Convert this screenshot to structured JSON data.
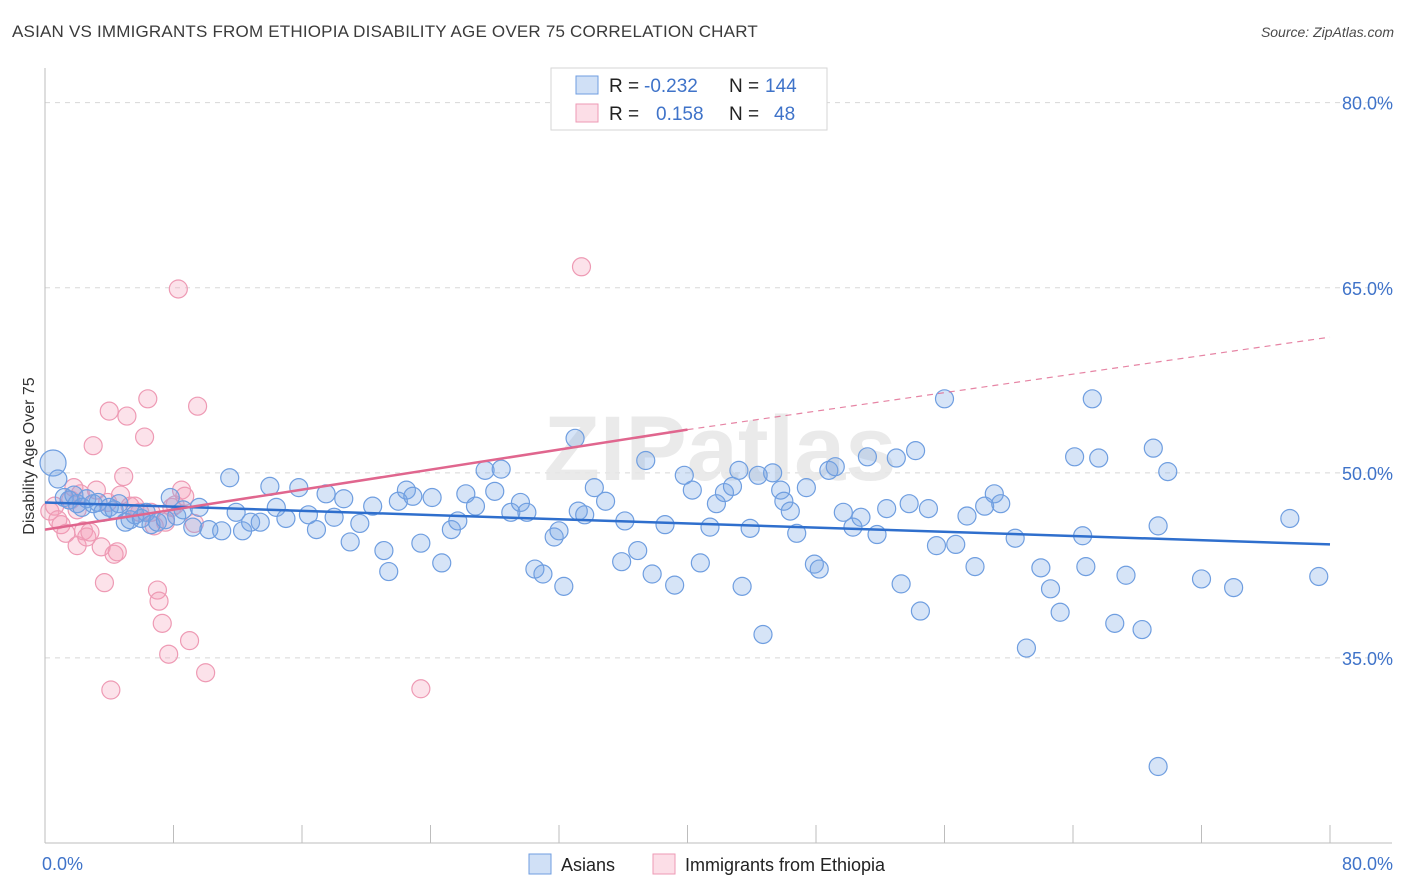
{
  "title": "ASIAN VS IMMIGRANTS FROM ETHIOPIA DISABILITY AGE OVER 75 CORRELATION CHART",
  "source": "Source: ZipAtlas.com",
  "watermark": "ZIPatlas",
  "colors": {
    "asian_fill": "rgba(120,165,230,0.30)",
    "asian_stroke": "#6f9ee0",
    "asian_line": "#2f6fcd",
    "eth_fill": "rgba(245,160,185,0.30)",
    "eth_stroke": "#ee9ab4",
    "eth_line": "#e0668e",
    "axis_text": "#3f73c9",
    "grid": "#d8d8d8"
  },
  "legend": {
    "rows": [
      {
        "r_label": "R =",
        "r_value": "-0.232",
        "n_label": "N =",
        "n_value": "144"
      },
      {
        "r_label": "R =",
        "r_value": "0.158",
        "n_label": "N =",
        "n_value": "48"
      }
    ]
  },
  "chart_data": {
    "type": "scatter",
    "title": "ASIAN VS IMMIGRANTS FROM ETHIOPIA DISABILITY AGE OVER 75 CORRELATION CHART",
    "xlabel": "",
    "ylabel": "Disability Age Over 75",
    "xlim": [
      0,
      80
    ],
    "ylim": [
      20,
      82
    ],
    "x_tick_labels": [
      "0.0%",
      "80.0%"
    ],
    "y_ticks": [
      35,
      50,
      65,
      80
    ],
    "y_tick_labels": [
      "35.0%",
      "50.0%",
      "65.0%",
      "80.0%"
    ],
    "grid": true,
    "series": [
      {
        "name": "Asians",
        "trend": {
          "x0": 0,
          "y0": 47.6,
          "x1": 80,
          "y1": 44.2
        },
        "points": [
          [
            0.5,
            50.8
          ],
          [
            0.8,
            49.5
          ],
          [
            1.2,
            48.0
          ],
          [
            1.5,
            47.8
          ],
          [
            1.8,
            48.2
          ],
          [
            2.0,
            47.5
          ],
          [
            2.3,
            47.2
          ],
          [
            2.6,
            47.9
          ],
          [
            3.0,
            47.5
          ],
          [
            3.3,
            47.6
          ],
          [
            3.6,
            46.8
          ],
          [
            4.0,
            47.2
          ],
          [
            4.3,
            47.0
          ],
          [
            4.6,
            47.5
          ],
          [
            5.0,
            46.0
          ],
          [
            5.3,
            46.2
          ],
          [
            5.6,
            46.6
          ],
          [
            6.0,
            46.3
          ],
          [
            6.3,
            46.8
          ],
          [
            6.6,
            45.8
          ],
          [
            7.0,
            46.0
          ],
          [
            7.5,
            46.2
          ],
          [
            7.8,
            48.0
          ],
          [
            8.2,
            46.5
          ],
          [
            8.6,
            47.0
          ],
          [
            9.2,
            45.6
          ],
          [
            9.6,
            47.2
          ],
          [
            10.2,
            45.4
          ],
          [
            11.0,
            45.3
          ],
          [
            11.5,
            49.6
          ],
          [
            11.9,
            46.8
          ],
          [
            12.3,
            45.3
          ],
          [
            12.8,
            46.0
          ],
          [
            13.4,
            46.0
          ],
          [
            14.0,
            48.9
          ],
          [
            14.4,
            47.2
          ],
          [
            15.0,
            46.3
          ],
          [
            15.8,
            48.8
          ],
          [
            16.4,
            46.6
          ],
          [
            16.9,
            45.4
          ],
          [
            17.5,
            48.3
          ],
          [
            18.0,
            46.4
          ],
          [
            18.6,
            47.9
          ],
          [
            19.0,
            44.4
          ],
          [
            19.6,
            45.9
          ],
          [
            20.4,
            47.3
          ],
          [
            21.1,
            43.7
          ],
          [
            21.4,
            42.0
          ],
          [
            22.0,
            47.7
          ],
          [
            22.5,
            48.6
          ],
          [
            22.9,
            48.1
          ],
          [
            23.4,
            44.3
          ],
          [
            24.1,
            48.0
          ],
          [
            24.7,
            42.7
          ],
          [
            25.3,
            45.4
          ],
          [
            25.7,
            46.1
          ],
          [
            26.2,
            48.3
          ],
          [
            26.8,
            47.3
          ],
          [
            27.4,
            50.2
          ],
          [
            28.0,
            48.5
          ],
          [
            28.4,
            50.3
          ],
          [
            29.0,
            46.8
          ],
          [
            29.6,
            47.6
          ],
          [
            30.0,
            46.8
          ],
          [
            30.5,
            42.2
          ],
          [
            31.0,
            41.8
          ],
          [
            31.7,
            44.8
          ],
          [
            32.0,
            45.3
          ],
          [
            32.3,
            40.8
          ],
          [
            33.0,
            52.8
          ],
          [
            33.2,
            46.9
          ],
          [
            33.6,
            46.6
          ],
          [
            34.2,
            48.8
          ],
          [
            34.9,
            47.7
          ],
          [
            36.1,
            46.1
          ],
          [
            35.9,
            42.8
          ],
          [
            36.9,
            43.7
          ],
          [
            37.4,
            51.0
          ],
          [
            37.8,
            41.8
          ],
          [
            38.6,
            45.8
          ],
          [
            39.2,
            40.9
          ],
          [
            39.8,
            49.8
          ],
          [
            40.3,
            48.6
          ],
          [
            40.8,
            42.7
          ],
          [
            41.4,
            45.6
          ],
          [
            41.8,
            47.5
          ],
          [
            42.3,
            48.4
          ],
          [
            42.8,
            48.9
          ],
          [
            43.2,
            50.2
          ],
          [
            43.4,
            40.8
          ],
          [
            43.9,
            45.5
          ],
          [
            44.4,
            49.8
          ],
          [
            44.7,
            36.9
          ],
          [
            45.3,
            50.0
          ],
          [
            45.8,
            48.6
          ],
          [
            46.0,
            47.7
          ],
          [
            46.4,
            46.9
          ],
          [
            46.8,
            45.1
          ],
          [
            47.4,
            48.8
          ],
          [
            47.9,
            42.6
          ],
          [
            48.2,
            42.2
          ],
          [
            48.8,
            50.2
          ],
          [
            49.2,
            50.5
          ],
          [
            49.7,
            46.8
          ],
          [
            50.3,
            45.6
          ],
          [
            50.8,
            46.4
          ],
          [
            51.2,
            51.3
          ],
          [
            51.8,
            45.0
          ],
          [
            52.4,
            47.1
          ],
          [
            53.0,
            51.2
          ],
          [
            53.3,
            41.0
          ],
          [
            53.8,
            47.5
          ],
          [
            54.2,
            51.8
          ],
          [
            54.5,
            38.8
          ],
          [
            55.0,
            47.1
          ],
          [
            55.5,
            44.1
          ],
          [
            56.0,
            56.0
          ],
          [
            56.7,
            44.2
          ],
          [
            57.4,
            46.5
          ],
          [
            57.9,
            42.4
          ],
          [
            58.5,
            47.3
          ],
          [
            59.1,
            48.3
          ],
          [
            59.5,
            47.5
          ],
          [
            60.4,
            44.7
          ],
          [
            61.1,
            35.8
          ],
          [
            62.0,
            42.3
          ],
          [
            62.6,
            40.6
          ],
          [
            63.2,
            38.7
          ],
          [
            64.1,
            51.3
          ],
          [
            64.6,
            44.9
          ],
          [
            64.8,
            42.4
          ],
          [
            65.2,
            56.0
          ],
          [
            65.6,
            51.2
          ],
          [
            66.6,
            37.8
          ],
          [
            67.3,
            41.7
          ],
          [
            68.3,
            37.3
          ],
          [
            69.0,
            52.0
          ],
          [
            69.3,
            45.7
          ],
          [
            69.9,
            50.1
          ],
          [
            69.3,
            26.2
          ],
          [
            72.0,
            41.4
          ],
          [
            74.0,
            40.7
          ],
          [
            77.5,
            46.3
          ],
          [
            79.3,
            41.6
          ]
        ]
      },
      {
        "name": "Immigrants from Ethiopia",
        "trend": {
          "x0": 0,
          "y0": 45.4,
          "x1": 40,
          "y1": 53.5,
          "dash_to_x": 80,
          "dash_to_y": 61.0
        },
        "points": [
          [
            0.3,
            46.9
          ],
          [
            0.6,
            47.3
          ],
          [
            0.8,
            46.2
          ],
          [
            1.0,
            45.8
          ],
          [
            1.3,
            45.1
          ],
          [
            1.6,
            47.8
          ],
          [
            1.8,
            48.8
          ],
          [
            2.0,
            44.1
          ],
          [
            2.2,
            48.3
          ],
          [
            2.4,
            45.3
          ],
          [
            2.6,
            44.8
          ],
          [
            2.8,
            45.2
          ],
          [
            3.0,
            52.2
          ],
          [
            3.2,
            48.6
          ],
          [
            3.5,
            44.0
          ],
          [
            3.7,
            41.1
          ],
          [
            3.9,
            47.6
          ],
          [
            4.0,
            55.0
          ],
          [
            4.3,
            43.4
          ],
          [
            4.5,
            43.6
          ],
          [
            4.7,
            48.2
          ],
          [
            4.9,
            49.7
          ],
          [
            5.1,
            54.6
          ],
          [
            5.3,
            47.3
          ],
          [
            5.6,
            47.3
          ],
          [
            5.9,
            46.8
          ],
          [
            6.2,
            52.9
          ],
          [
            6.4,
            56.0
          ],
          [
            6.6,
            46.8
          ],
          [
            6.8,
            45.7
          ],
          [
            7.0,
            40.5
          ],
          [
            7.1,
            39.6
          ],
          [
            7.3,
            37.8
          ],
          [
            7.5,
            46.0
          ],
          [
            7.7,
            35.3
          ],
          [
            7.9,
            47.2
          ],
          [
            8.1,
            47.4
          ],
          [
            8.3,
            64.9
          ],
          [
            8.5,
            48.6
          ],
          [
            8.7,
            48.1
          ],
          [
            9.0,
            36.4
          ],
          [
            9.3,
            45.9
          ],
          [
            9.5,
            55.4
          ],
          [
            10.0,
            33.8
          ],
          [
            4.1,
            32.4
          ],
          [
            23.4,
            32.5
          ],
          [
            33.4,
            66.7
          ],
          [
            2.0,
            47.0
          ]
        ]
      }
    ],
    "bottom_legend": [
      "Asians",
      "Immigrants from Ethiopia"
    ]
  }
}
